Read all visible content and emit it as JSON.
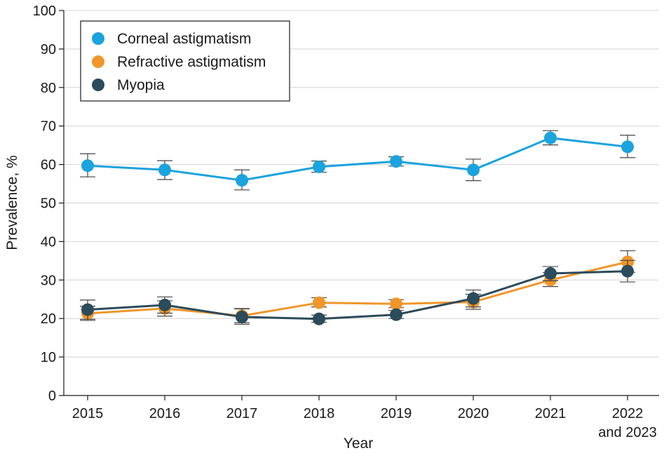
{
  "chart_data": {
    "type": "line",
    "xlabel": "Year",
    "ylabel": "Prevalence, %",
    "ylim": [
      0,
      100
    ],
    "yticks": [
      0,
      10,
      20,
      30,
      40,
      50,
      60,
      70,
      80,
      90,
      100
    ],
    "categories": [
      [
        "2015"
      ],
      [
        "2016"
      ],
      [
        "2017"
      ],
      [
        "2018"
      ],
      [
        "2019"
      ],
      [
        "2020"
      ],
      [
        "2021"
      ],
      [
        "2022",
        "and 2023"
      ]
    ],
    "grid": "horizontal",
    "legend_position": "top-left",
    "series": [
      {
        "name": "Corneal astigmatism",
        "color": "#1AA3DD",
        "values": [
          59.7,
          58.6,
          55.9,
          59.4,
          60.8,
          58.6,
          66.9,
          64.6
        ],
        "err_low": [
          56.8,
          56.1,
          53.4,
          58.0,
          59.6,
          55.8,
          65.1,
          61.8
        ],
        "err_high": [
          62.8,
          61.0,
          58.6,
          60.9,
          62.0,
          61.4,
          68.8,
          67.6
        ]
      },
      {
        "name": "Refractive astigmatism",
        "color": "#F0962B",
        "values": [
          21.3,
          22.6,
          20.7,
          24.1,
          23.8,
          24.3,
          30.0,
          34.7
        ],
        "err_low": [
          19.5,
          20.6,
          18.9,
          23.0,
          22.8,
          22.4,
          28.3,
          32.0
        ],
        "err_high": [
          23.2,
          24.6,
          22.6,
          25.4,
          24.9,
          26.3,
          31.9,
          37.6
        ]
      },
      {
        "name": "Myopia",
        "color": "#2C4B5B",
        "values": [
          22.3,
          23.5,
          20.4,
          19.9,
          21.0,
          25.2,
          31.7,
          32.3
        ],
        "err_low": [
          19.8,
          21.4,
          18.5,
          19.0,
          20.0,
          23.0,
          29.8,
          29.5
        ],
        "err_high": [
          24.8,
          25.6,
          22.5,
          20.9,
          22.1,
          27.4,
          33.5,
          35.1
        ]
      }
    ]
  }
}
